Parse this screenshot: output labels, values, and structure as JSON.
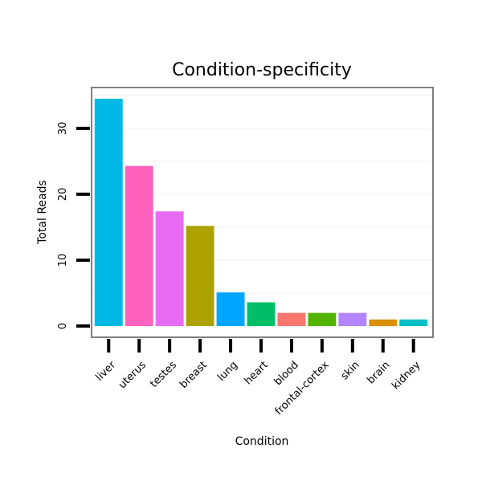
{
  "chart_data": {
    "type": "bar",
    "title": "Condition-specificity",
    "xlabel": "Condition",
    "ylabel": "Total Reads",
    "categories": [
      "liver",
      "uterus",
      "testes",
      "breast",
      "lung",
      "heart",
      "blood",
      "frontal-cortex",
      "skin",
      "brain",
      "kidney"
    ],
    "values": [
      34.5,
      24.3,
      17.4,
      15.2,
      5.1,
      3.6,
      2.0,
      2.0,
      2.0,
      1.0,
      1.0
    ],
    "colors": [
      "#00B8E5",
      "#FF62BC",
      "#E76BF3",
      "#AEA200",
      "#00A5FF",
      "#00BE67",
      "#F8766D",
      "#53B400",
      "#B385FF",
      "#DB8E00",
      "#00BFC4"
    ],
    "yticks": [
      0,
      10,
      20,
      30
    ],
    "ylim": [
      -1.7,
      36.2
    ],
    "grid": true,
    "legend": "none"
  }
}
